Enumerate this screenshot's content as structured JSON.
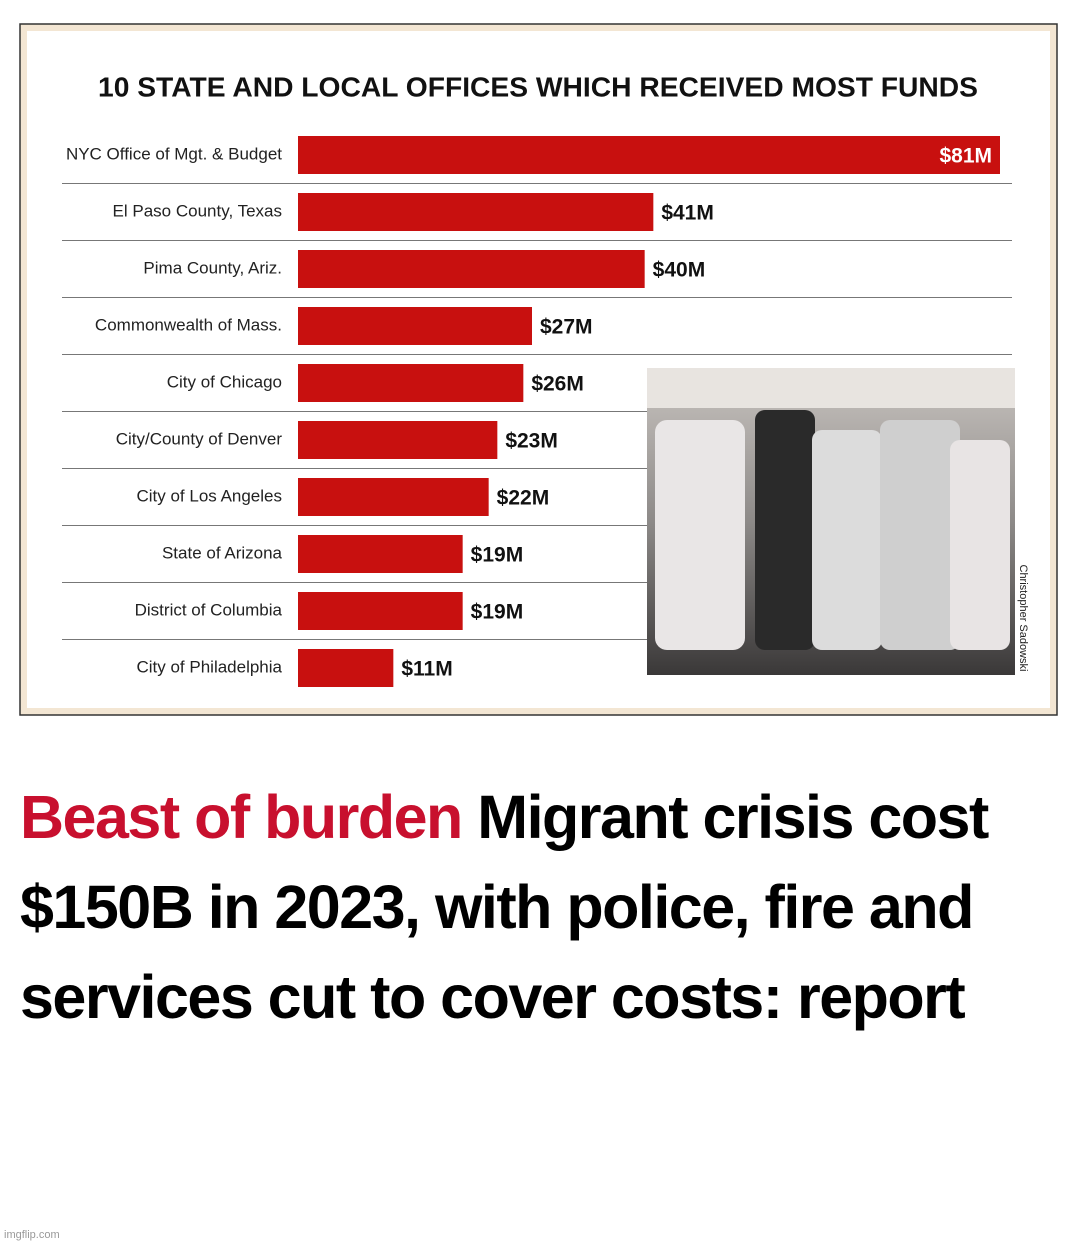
{
  "chart_data": {
    "type": "bar",
    "orientation": "horizontal",
    "title": "10 STATE AND LOCAL OFFICES WHICH RECEIVED MOST FUNDS",
    "categories": [
      "NYC Office of Mgt. & Budget",
      "El Paso County, Texas",
      "Pima County, Ariz.",
      "Commonwealth of Mass.",
      "City of Chicago",
      "City/County of Denver",
      "City of Los Angeles",
      "State of Arizona",
      "District of Columbia",
      "City of Philadelphia"
    ],
    "values": [
      81,
      41,
      40,
      27,
      26,
      23,
      22,
      19,
      19,
      11
    ],
    "value_labels": [
      "$81M",
      "$41M",
      "$40M",
      "$27M",
      "$26M",
      "$23M",
      "$22M",
      "$19M",
      "$19M",
      "$11M"
    ],
    "color": "#c8100f"
  },
  "photo_credit": "Christopher Sadowski",
  "headline": {
    "kicker": "Beast of burden",
    "text": "Migrant crisis cost $150B in 2023, with police, fire and services cut to cover costs: report"
  },
  "watermark": "imgflip.com"
}
